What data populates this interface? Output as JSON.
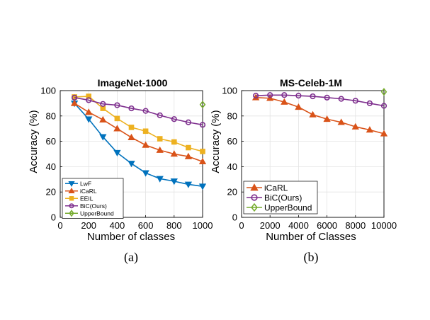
{
  "captions": [
    "(a)",
    "(b)"
  ],
  "chart_data": [
    {
      "type": "line",
      "title": "ImageNet-1000",
      "xlabel": "Number of classes",
      "ylabel": "Accuracy (%)",
      "xlim": [
        0,
        1000
      ],
      "ylim": [
        0,
        100
      ],
      "xticks": [
        0,
        200,
        400,
        600,
        800,
        1000
      ],
      "xtick_labels": [
        "0",
        "200",
        "400",
        "600",
        "800",
        "1000"
      ],
      "yticks": [
        0,
        20,
        40,
        60,
        80,
        100
      ],
      "ytick_labels": [
        "0",
        "20",
        "40",
        "60",
        "80",
        "100"
      ],
      "grid": true,
      "legend": "bottom-left",
      "series": [
        {
          "name": "LwF",
          "color": "#0072BD",
          "marker": "triangle-down",
          "x": [
            100,
            200,
            300,
            400,
            500,
            600,
            700,
            800,
            900,
            1000
          ],
          "y": [
            90,
            77.5,
            63.5,
            51,
            42.5,
            35,
            30.5,
            28.5,
            26,
            24.5
          ]
        },
        {
          "name": "iCaRL",
          "color": "#D95319",
          "marker": "triangle-up",
          "x": [
            100,
            200,
            300,
            400,
            500,
            600,
            700,
            800,
            900,
            1000
          ],
          "y": [
            90,
            83,
            77,
            70,
            63,
            57,
            53,
            50,
            48,
            44
          ]
        },
        {
          "name": "EEIL",
          "color": "#EDB120",
          "marker": "square",
          "x": [
            100,
            200,
            300,
            400,
            500,
            600,
            700,
            800,
            900,
            1000
          ],
          "y": [
            95,
            95.5,
            86,
            78,
            71,
            68,
            62,
            59.5,
            55,
            52
          ]
        },
        {
          "name": "BiC(Ours)",
          "color": "#7E2F8E",
          "marker": "circle",
          "x": [
            100,
            200,
            300,
            400,
            500,
            600,
            700,
            800,
            900,
            1000
          ],
          "y": [
            94.5,
            92.5,
            89.5,
            88.5,
            86,
            84,
            80.5,
            77.5,
            75,
            73
          ]
        },
        {
          "name": "UpperBound",
          "color": "#77AC30",
          "marker": "diamond",
          "x": [
            1000
          ],
          "y": [
            89
          ]
        }
      ]
    },
    {
      "type": "line",
      "title": "MS-Celeb-1M",
      "xlabel": "Number of Classes",
      "ylabel": "Accuracy (%)",
      "xlim": [
        0,
        10000
      ],
      "ylim": [
        0,
        100
      ],
      "xticks": [
        0,
        2000,
        4000,
        6000,
        8000,
        10000
      ],
      "xtick_labels": [
        "0",
        "2000",
        "4000",
        "6000",
        "8000",
        "10000"
      ],
      "yticks": [
        0,
        20,
        40,
        60,
        80,
        100
      ],
      "ytick_labels": [
        "0",
        "20",
        "40",
        "60",
        "80",
        "100"
      ],
      "grid": true,
      "legend": "bottom-left",
      "series": [
        {
          "name": "iCaRL",
          "color": "#D95319",
          "marker": "triangle-up",
          "x": [
            1000,
            2000,
            3000,
            4000,
            5000,
            6000,
            7000,
            8000,
            9000,
            10000
          ],
          "y": [
            94.5,
            94,
            91,
            87,
            81,
            77.5,
            75,
            71.5,
            69,
            66
          ]
        },
        {
          "name": "BiC(Ours)",
          "color": "#7E2F8E",
          "marker": "circle",
          "x": [
            1000,
            2000,
            3000,
            4000,
            5000,
            6000,
            7000,
            8000,
            9000,
            10000
          ],
          "y": [
            96,
            96.5,
            96.5,
            96,
            95.5,
            94.5,
            93.5,
            92,
            90,
            88
          ]
        },
        {
          "name": "UpperBound",
          "color": "#77AC30",
          "marker": "diamond",
          "x": [
            10000
          ],
          "y": [
            99
          ]
        }
      ]
    }
  ]
}
